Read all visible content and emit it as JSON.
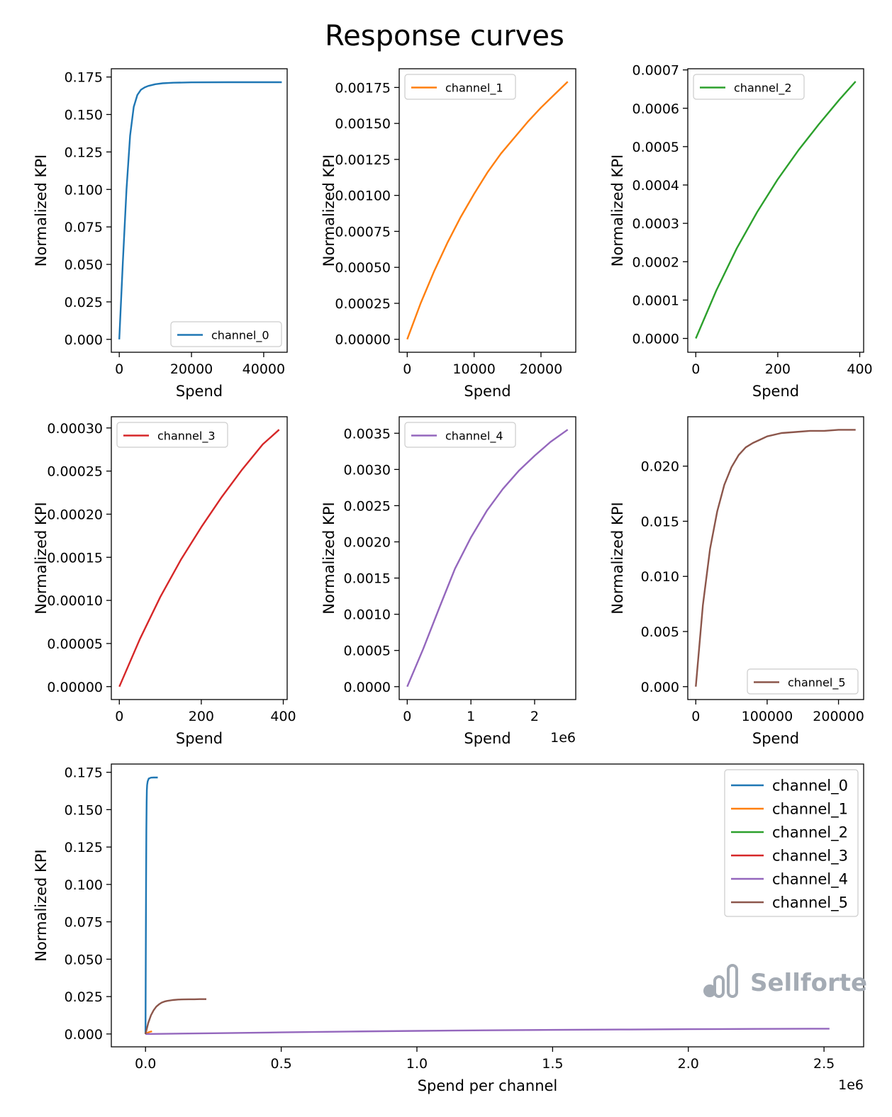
{
  "figure": {
    "title": "Response curves",
    "watermark": "Sellforte",
    "watermark_color": "#a4abb4"
  },
  "chart_data": [
    {
      "type": "line",
      "xlabel": "Spend",
      "ylabel": "Normalized KPI",
      "xlim": [
        -2200,
        46500
      ],
      "ylim": [
        -0.0086,
        0.1805
      ],
      "xticks": [
        0,
        20000,
        40000
      ],
      "xtick_labels": [
        "0",
        "20000",
        "40000"
      ],
      "yticks": [
        0,
        0.025,
        0.05,
        0.075,
        0.1,
        0.125,
        0.15,
        0.175
      ],
      "ytick_labels": [
        "0.000",
        "0.025",
        "0.050",
        "0.075",
        "0.100",
        "0.125",
        "0.150",
        "0.175"
      ],
      "x_offset_label": "",
      "legend_loc": "lower-right",
      "legend_size": "small",
      "series": [
        {
          "name": "channel_0",
          "color": "#1f77b4",
          "x": [
            0,
            1000,
            2000,
            3000,
            4000,
            5000,
            6000,
            7000,
            8000,
            10000,
            12000,
            15000,
            20000,
            30000,
            40000,
            45000
          ],
          "y": [
            0,
            0.052,
            0.1,
            0.136,
            0.155,
            0.163,
            0.1665,
            0.168,
            0.169,
            0.1702,
            0.1708,
            0.1712,
            0.1714,
            0.1715,
            0.1715,
            0.1715
          ]
        }
      ]
    },
    {
      "type": "line",
      "xlabel": "Spend",
      "ylabel": "Normalized KPI",
      "xlim": [
        -1200,
        25200
      ],
      "ylim": [
        -9e-05,
        0.00188
      ],
      "xticks": [
        0,
        10000,
        20000
      ],
      "xtick_labels": [
        "0",
        "10000",
        "20000"
      ],
      "yticks": [
        0,
        0.00025,
        0.0005,
        0.00075,
        0.001,
        0.00125,
        0.0015,
        0.00175
      ],
      "ytick_labels": [
        "0.00000",
        "0.00025",
        "0.00050",
        "0.00075",
        "0.00100",
        "0.00125",
        "0.00150",
        "0.00175"
      ],
      "x_offset_label": "",
      "legend_loc": "upper-left",
      "legend_size": "small",
      "series": [
        {
          "name": "channel_1",
          "color": "#ff7f0e",
          "x": [
            0,
            2000,
            4000,
            6000,
            8000,
            10000,
            12000,
            14000,
            16000,
            18000,
            20000,
            22000,
            24000
          ],
          "y": [
            0,
            0.00025,
            0.00047,
            0.00067,
            0.00085,
            0.00101,
            0.00116,
            0.00129,
            0.0014,
            0.00151,
            0.00161,
            0.0017,
            0.00179
          ]
        }
      ]
    },
    {
      "type": "line",
      "xlabel": "Spend",
      "ylabel": "Normalized KPI",
      "xlim": [
        -19.5,
        409.5
      ],
      "ylim": [
        -3.6e-05,
        0.000703
      ],
      "xticks": [
        0,
        200,
        400
      ],
      "xtick_labels": [
        "0",
        "200",
        "400"
      ],
      "yticks": [
        0,
        0.0001,
        0.0002,
        0.0003,
        0.0004,
        0.0005,
        0.0006,
        0.0007
      ],
      "ytick_labels": [
        "0.0000",
        "0.0001",
        "0.0002",
        "0.0003",
        "0.0004",
        "0.0005",
        "0.0006",
        "0.0007"
      ],
      "x_offset_label": "",
      "legend_loc": "upper-left",
      "legend_size": "small",
      "series": [
        {
          "name": "channel_2",
          "color": "#2ca02c",
          "x": [
            0,
            50,
            100,
            150,
            200,
            250,
            300,
            350,
            390
          ],
          "y": [
            0,
            0.000125,
            0.000235,
            0.00033,
            0.000415,
            0.00049,
            0.000558,
            0.000622,
            0.00067
          ]
        }
      ]
    },
    {
      "type": "line",
      "xlabel": "Spend",
      "ylabel": "Normalized KPI",
      "xlim": [
        -19.5,
        409.5
      ],
      "ylim": [
        -1.5e-05,
        0.000313
      ],
      "xticks": [
        0,
        200,
        400
      ],
      "xtick_labels": [
        "0",
        "200",
        "400"
      ],
      "yticks": [
        0,
        5e-05,
        0.0001,
        0.00015,
        0.0002,
        0.00025,
        0.0003
      ],
      "ytick_labels": [
        "0.00000",
        "0.00005",
        "0.00010",
        "0.00015",
        "0.00020",
        "0.00025",
        "0.00030"
      ],
      "x_offset_label": "",
      "legend_loc": "upper-left",
      "legend_size": "small",
      "series": [
        {
          "name": "channel_3",
          "color": "#d62728",
          "x": [
            0,
            50,
            100,
            150,
            200,
            250,
            300,
            350,
            390
          ],
          "y": [
            0,
            5.5e-05,
            0.000104,
            0.000147,
            0.000185,
            0.00022,
            0.000252,
            0.000281,
            0.000298
          ]
        }
      ]
    },
    {
      "type": "line",
      "xlabel": "Spend",
      "ylabel": "Normalized KPI",
      "xlim": [
        -126000,
        2646000
      ],
      "ylim": [
        -0.000178,
        0.003728
      ],
      "xticks": [
        0,
        1000000,
        2000000
      ],
      "xtick_labels": [
        "0",
        "1",
        "2"
      ],
      "yticks": [
        0,
        0.0005,
        0.001,
        0.0015,
        0.002,
        0.0025,
        0.003,
        0.0035
      ],
      "ytick_labels": [
        "0.0000",
        "0.0005",
        "0.0010",
        "0.0015",
        "0.0020",
        "0.0025",
        "0.0030",
        "0.0035"
      ],
      "x_offset_label": "1e6",
      "legend_loc": "upper-left",
      "legend_size": "small",
      "series": [
        {
          "name": "channel_4",
          "color": "#9467bd",
          "x": [
            0,
            250000,
            500000,
            750000,
            1000000,
            1250000,
            1500000,
            1750000,
            2000000,
            2250000,
            2520000
          ],
          "y": [
            0,
            0.00052,
            0.00108,
            0.00163,
            0.00206,
            0.00243,
            0.00273,
            0.00298,
            0.00319,
            0.00338,
            0.00355
          ]
        }
      ]
    },
    {
      "type": "line",
      "xlabel": "Spend",
      "ylabel": "Normalized KPI",
      "xlim": [
        -11200,
        235200
      ],
      "ylim": [
        -0.00117,
        0.02448
      ],
      "xticks": [
        0,
        100000,
        200000
      ],
      "xtick_labels": [
        "0",
        "100000",
        "200000"
      ],
      "yticks": [
        0,
        0.005,
        0.01,
        0.015,
        0.02
      ],
      "ytick_labels": [
        "0.000",
        "0.005",
        "0.010",
        "0.015",
        "0.020"
      ],
      "x_offset_label": "",
      "legend_loc": "lower-right",
      "legend_size": "small",
      "series": [
        {
          "name": "channel_5",
          "color": "#8c564b",
          "x": [
            0,
            10000,
            20000,
            30000,
            40000,
            50000,
            60000,
            70000,
            80000,
            90000,
            100000,
            120000,
            140000,
            160000,
            180000,
            200000,
            224000
          ],
          "y": [
            0,
            0.0074,
            0.0125,
            0.0159,
            0.0183,
            0.0199,
            0.021,
            0.0217,
            0.0221,
            0.0224,
            0.0227,
            0.023,
            0.0231,
            0.0232,
            0.0232,
            0.0233,
            0.0233
          ]
        }
      ]
    },
    {
      "type": "line",
      "xlabel": "Spend per channel",
      "ylabel": "Normalized KPI",
      "xlim": [
        -126000,
        2646000
      ],
      "ylim": [
        -0.0086,
        0.1805
      ],
      "xticks": [
        0,
        500000,
        1000000,
        1500000,
        2000000,
        2500000
      ],
      "xtick_labels": [
        "0.0",
        "0.5",
        "1.0",
        "1.5",
        "2.0",
        "2.5"
      ],
      "yticks": [
        0,
        0.025,
        0.05,
        0.075,
        0.1,
        0.125,
        0.15,
        0.175
      ],
      "ytick_labels": [
        "0.000",
        "0.025",
        "0.050",
        "0.075",
        "0.100",
        "0.125",
        "0.150",
        "0.175"
      ],
      "x_offset_label": "1e6",
      "legend_loc": "upper-right",
      "legend_size": "large",
      "series": [
        {
          "name": "channel_0",
          "color": "#1f77b4",
          "x": [
            0,
            1000,
            2000,
            3000,
            4000,
            5000,
            6000,
            8000,
            12000,
            20000,
            30000,
            45000
          ],
          "y": [
            0,
            0.052,
            0.1,
            0.136,
            0.155,
            0.163,
            0.1665,
            0.169,
            0.1708,
            0.1714,
            0.1715,
            0.1715
          ]
        },
        {
          "name": "channel_1",
          "color": "#ff7f0e",
          "x": [
            0,
            4000,
            8000,
            12000,
            16000,
            20000,
            24000
          ],
          "y": [
            0,
            0.00047,
            0.00085,
            0.00116,
            0.0014,
            0.00161,
            0.00179
          ]
        },
        {
          "name": "channel_2",
          "color": "#2ca02c",
          "x": [
            0,
            100,
            200,
            300,
            390
          ],
          "y": [
            0,
            0.000235,
            0.000415,
            0.000558,
            0.00067
          ]
        },
        {
          "name": "channel_3",
          "color": "#d62728",
          "x": [
            0,
            100,
            200,
            300,
            390
          ],
          "y": [
            0,
            0.000104,
            0.000185,
            0.000252,
            0.000298
          ]
        },
        {
          "name": "channel_4",
          "color": "#9467bd",
          "x": [
            0,
            250000,
            500000,
            750000,
            1000000,
            1250000,
            1500000,
            1750000,
            2000000,
            2250000,
            2520000
          ],
          "y": [
            0,
            0.00052,
            0.00108,
            0.00163,
            0.00206,
            0.00243,
            0.00273,
            0.00298,
            0.00319,
            0.00338,
            0.00355
          ]
        },
        {
          "name": "channel_5",
          "color": "#8c564b",
          "x": [
            0,
            10000,
            20000,
            30000,
            40000,
            50000,
            60000,
            70000,
            80000,
            100000,
            120000,
            140000,
            160000,
            180000,
            200000,
            224000
          ],
          "y": [
            0,
            0.0074,
            0.0125,
            0.0159,
            0.0183,
            0.0199,
            0.021,
            0.0217,
            0.0221,
            0.0227,
            0.023,
            0.0231,
            0.0232,
            0.0232,
            0.0233,
            0.0233
          ]
        }
      ]
    }
  ]
}
